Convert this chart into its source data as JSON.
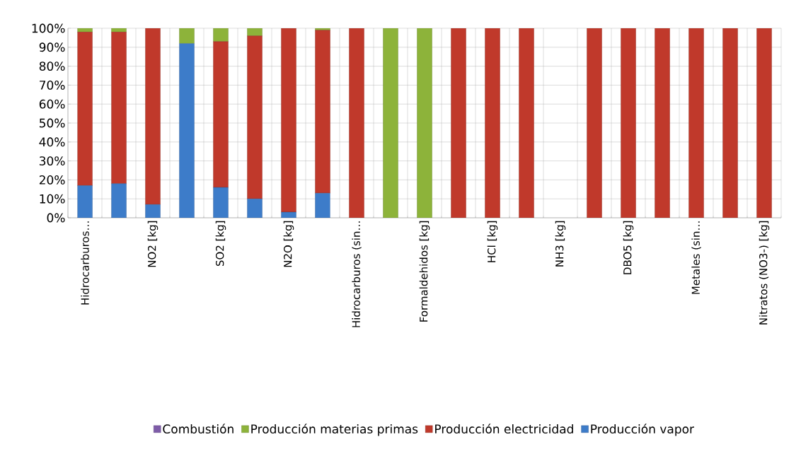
{
  "chart_data": {
    "type": "bar",
    "stacked": true,
    "categories": [
      "Hidrocarburos…",
      null,
      "NO2 [kg]",
      null,
      "SO2 [kg]",
      null,
      "N2O [kg]",
      null,
      "Hidrocarburos (sin…",
      null,
      "Formaldehidos [kg]",
      null,
      "HCl [kg]",
      null,
      "NH3 [kg]",
      null,
      "DBO5 [kg]",
      null,
      "Metales (sin…",
      null,
      "Nitratos (NO3-) [kg]"
    ],
    "series": [
      {
        "name": "Producción vapor",
        "color": "#3d7cc9",
        "values": [
          17,
          18,
          7,
          92,
          16,
          10,
          3,
          13,
          0,
          0,
          0,
          0,
          0,
          0,
          null,
          0,
          0,
          0,
          0,
          0,
          0
        ]
      },
      {
        "name": "Producción electricidad",
        "color": "#c0392b",
        "values": [
          81,
          80,
          93,
          0,
          77,
          86,
          97,
          86,
          100,
          0,
          0,
          100,
          100,
          100,
          null,
          100,
          100,
          100,
          100,
          100,
          100
        ]
      },
      {
        "name": "Producción materias primas",
        "color": "#8db33a",
        "values": [
          2,
          2,
          0,
          8,
          7,
          4,
          0,
          1,
          0,
          100,
          100,
          0,
          0,
          0,
          null,
          0,
          0,
          0,
          0,
          0,
          0
        ]
      },
      {
        "name": "Combustión",
        "color": "#7e5ca8",
        "values": [
          0,
          0,
          0,
          0,
          0,
          0,
          0,
          0,
          0,
          0,
          0,
          0,
          0,
          0,
          null,
          0,
          0,
          0,
          0,
          0,
          0
        ]
      }
    ],
    "ylim": [
      0,
      100
    ],
    "yticks": [
      {
        "value": 0,
        "label": "0%"
      },
      {
        "value": 10,
        "label": "10%"
      },
      {
        "value": 20,
        "label": "20%"
      },
      {
        "value": 30,
        "label": "30%"
      },
      {
        "value": 40,
        "label": "40%"
      },
      {
        "value": 50,
        "label": "50%"
      },
      {
        "value": 60,
        "label": "60%"
      },
      {
        "value": 70,
        "label": "70%"
      },
      {
        "value": 80,
        "label": "80%"
      },
      {
        "value": 90,
        "label": "90%"
      },
      {
        "value": 100,
        "label": "100%"
      }
    ],
    "grid": true,
    "legend": "bottom"
  }
}
